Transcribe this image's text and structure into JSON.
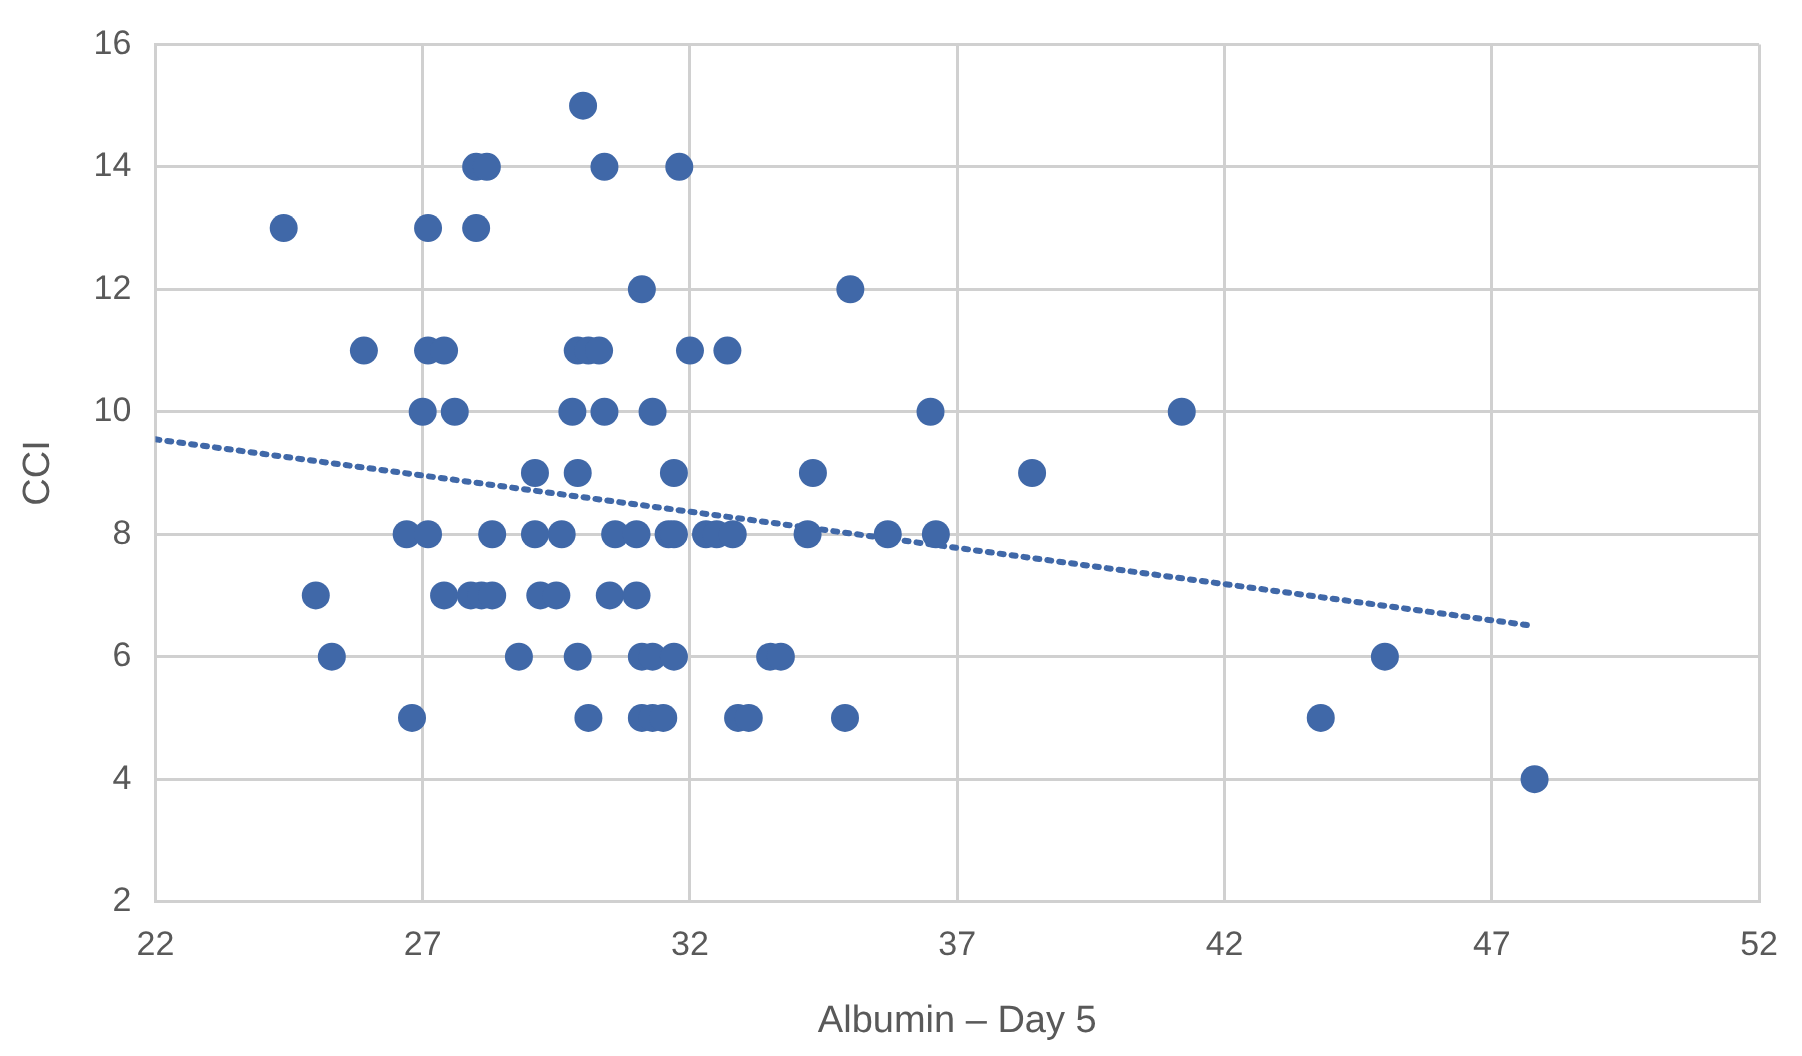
{
  "chart_data": {
    "type": "scatter",
    "xlabel": "Albumin – Day 5",
    "ylabel": "CCI",
    "xlim": [
      22,
      52
    ],
    "xticks": [
      22,
      27,
      32,
      37,
      42,
      47,
      52
    ],
    "ylim": [
      2,
      16
    ],
    "yticks": [
      2,
      4,
      6,
      8,
      10,
      12,
      14,
      16
    ],
    "grid": true,
    "legend": false,
    "marker": "circle",
    "series": [
      {
        "color": "#4068a8",
        "x": [
          24.4,
          27.1,
          28.0,
          30.0,
          28.0,
          28.2,
          30.4,
          31.8,
          31.1,
          35.0,
          25.9,
          27.1,
          27.4,
          29.9,
          30.1,
          30.3,
          32.0,
          32.7,
          27.0,
          27.6,
          29.8,
          30.4,
          31.3,
          36.5,
          41.2,
          29.1,
          29.9,
          31.7,
          34.3,
          38.4,
          26.7,
          27.1,
          28.3,
          29.1,
          29.6,
          30.6,
          31.0,
          31.6,
          31.7,
          32.3,
          32.5,
          32.8,
          34.2,
          35.7,
          36.6,
          25.0,
          27.4,
          27.9,
          28.1,
          28.3,
          29.2,
          29.5,
          30.5,
          31.0,
          25.3,
          28.8,
          29.9,
          31.1,
          31.3,
          31.7,
          33.5,
          33.7,
          45.0,
          26.8,
          30.1,
          31.1,
          31.3,
          31.5,
          32.9,
          33.1,
          34.9,
          43.8,
          47.8
        ],
        "values": [
          13,
          13,
          13,
          15,
          14,
          14,
          14,
          14,
          12,
          12,
          11,
          11,
          11,
          11,
          11,
          11,
          11,
          11,
          10,
          10,
          10,
          10,
          10,
          10,
          10,
          9,
          9,
          9,
          9,
          9,
          8,
          8,
          8,
          8,
          8,
          8,
          8,
          8,
          8,
          8,
          8,
          8,
          8,
          8,
          8,
          7,
          7,
          7,
          7,
          7,
          7,
          7,
          7,
          7,
          6,
          6,
          6,
          6,
          6,
          6,
          6,
          6,
          6,
          5,
          5,
          5,
          5,
          5,
          5,
          5,
          5,
          5,
          4
        ]
      },
      {
        "type": "line",
        "color": "#4068a8",
        "line_style": "dotted",
        "marker": "none",
        "x": [
          22,
          47.8
        ],
        "values": [
          9.55,
          6.5
        ]
      }
    ]
  }
}
